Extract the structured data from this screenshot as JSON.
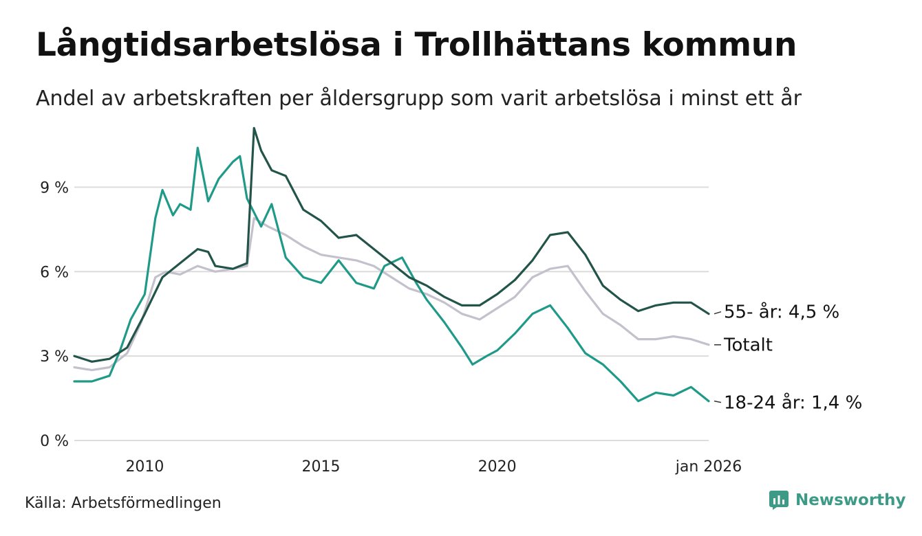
{
  "title": "Långtidsarbetslösa i Trollhättans kommun",
  "subtitle": "Andel av arbetskraften per åldersgrupp som varit arbetslösa i minst ett år",
  "source": "Källa: Arbetsförmedlingen",
  "brand": {
    "name": "Newsworthy"
  },
  "colors": {
    "age55": "#23544a",
    "total": "#c4c1cd",
    "age18_24": "#1f9a88",
    "grid": "#dcdcdc",
    "brand": "#3c9a86"
  },
  "chart_data": {
    "type": "line",
    "xlabel": "",
    "ylabel": "",
    "xlim": [
      2008.0,
      2026.0
    ],
    "ylim": [
      0,
      11.5
    ],
    "grid": true,
    "y_ticks": [
      {
        "value": 0,
        "label": "0 %"
      },
      {
        "value": 3,
        "label": "3 %"
      },
      {
        "value": 6,
        "label": "6 %"
      },
      {
        "value": 9,
        "label": "9 %"
      }
    ],
    "x_ticks": [
      {
        "value": 2010,
        "label": "2010"
      },
      {
        "value": 2015,
        "label": "2015"
      },
      {
        "value": 2020,
        "label": "2020"
      },
      {
        "value": 2026,
        "label": "jan 2026"
      }
    ],
    "series": [
      {
        "name": "Totalt",
        "color_key": "total",
        "end_label": "Totalt",
        "x": [
          2008.0,
          2008.5,
          2009.0,
          2009.5,
          2009.9,
          2010.3,
          2010.6,
          2011.0,
          2011.5,
          2012.0,
          2012.5,
          2012.9,
          2013.1,
          2013.5,
          2014.0,
          2014.5,
          2015.0,
          2015.5,
          2016.0,
          2016.5,
          2017.0,
          2017.5,
          2018.0,
          2018.5,
          2019.0,
          2019.5,
          2020.0,
          2020.5,
          2021.0,
          2021.5,
          2022.0,
          2022.5,
          2023.0,
          2023.5,
          2024.0,
          2024.5,
          2025.0,
          2025.5,
          2026.0
        ],
        "values": [
          2.6,
          2.5,
          2.6,
          3.1,
          4.2,
          5.8,
          6.0,
          5.9,
          6.2,
          6.0,
          6.1,
          6.2,
          7.9,
          7.6,
          7.3,
          6.9,
          6.6,
          6.5,
          6.4,
          6.2,
          5.8,
          5.4,
          5.2,
          4.9,
          4.5,
          4.3,
          4.7,
          5.1,
          5.8,
          6.1,
          6.2,
          5.3,
          4.5,
          4.1,
          3.6,
          3.6,
          3.7,
          3.6,
          3.4
        ]
      },
      {
        "name": "18-24 år",
        "color_key": "age18_24",
        "end_label": "18-24 år: 1,4 %",
        "x": [
          2008.0,
          2008.5,
          2009.0,
          2009.3,
          2009.6,
          2010.0,
          2010.3,
          2010.5,
          2010.8,
          2011.0,
          2011.3,
          2011.5,
          2011.8,
          2012.1,
          2012.5,
          2012.7,
          2012.9,
          2013.3,
          2013.6,
          2014.0,
          2014.5,
          2015.0,
          2015.5,
          2016.0,
          2016.5,
          2016.8,
          2017.3,
          2017.7,
          2018.0,
          2018.5,
          2019.0,
          2019.3,
          2019.7,
          2020.0,
          2020.5,
          2021.0,
          2021.5,
          2022.0,
          2022.5,
          2023.0,
          2023.5,
          2024.0,
          2024.5,
          2025.0,
          2025.5,
          2026.0
        ],
        "values": [
          2.1,
          2.1,
          2.3,
          3.2,
          4.3,
          5.2,
          7.9,
          8.9,
          8.0,
          8.4,
          8.2,
          10.4,
          8.5,
          9.3,
          9.9,
          10.1,
          8.6,
          7.6,
          8.4,
          6.5,
          5.8,
          5.6,
          6.4,
          5.6,
          5.4,
          6.2,
          6.5,
          5.6,
          5.0,
          4.2,
          3.3,
          2.7,
          3.0,
          3.2,
          3.8,
          4.5,
          4.8,
          4.0,
          3.1,
          2.7,
          2.1,
          1.4,
          1.7,
          1.6,
          1.9,
          1.4
        ]
      },
      {
        "name": "55- år",
        "color_key": "age55",
        "end_label": "55- år: 4,5 %",
        "x": [
          2008.0,
          2008.5,
          2009.0,
          2009.5,
          2010.0,
          2010.5,
          2011.0,
          2011.5,
          2011.8,
          2012.0,
          2012.5,
          2012.9,
          2013.1,
          2013.3,
          2013.6,
          2014.0,
          2014.5,
          2015.0,
          2015.5,
          2016.0,
          2016.5,
          2017.0,
          2017.5,
          2018.0,
          2018.5,
          2019.0,
          2019.5,
          2020.0,
          2020.5,
          2021.0,
          2021.5,
          2022.0,
          2022.5,
          2023.0,
          2023.5,
          2024.0,
          2024.5,
          2025.0,
          2025.5,
          2026.0
        ],
        "values": [
          3.0,
          2.8,
          2.9,
          3.3,
          4.5,
          5.8,
          6.3,
          6.8,
          6.7,
          6.2,
          6.1,
          6.3,
          11.1,
          10.3,
          9.6,
          9.4,
          8.2,
          7.8,
          7.2,
          7.3,
          6.8,
          6.3,
          5.8,
          5.5,
          5.1,
          4.8,
          4.8,
          5.2,
          5.7,
          6.4,
          7.3,
          7.4,
          6.6,
          5.5,
          5.0,
          4.6,
          4.8,
          4.9,
          4.9,
          4.5
        ]
      }
    ]
  }
}
